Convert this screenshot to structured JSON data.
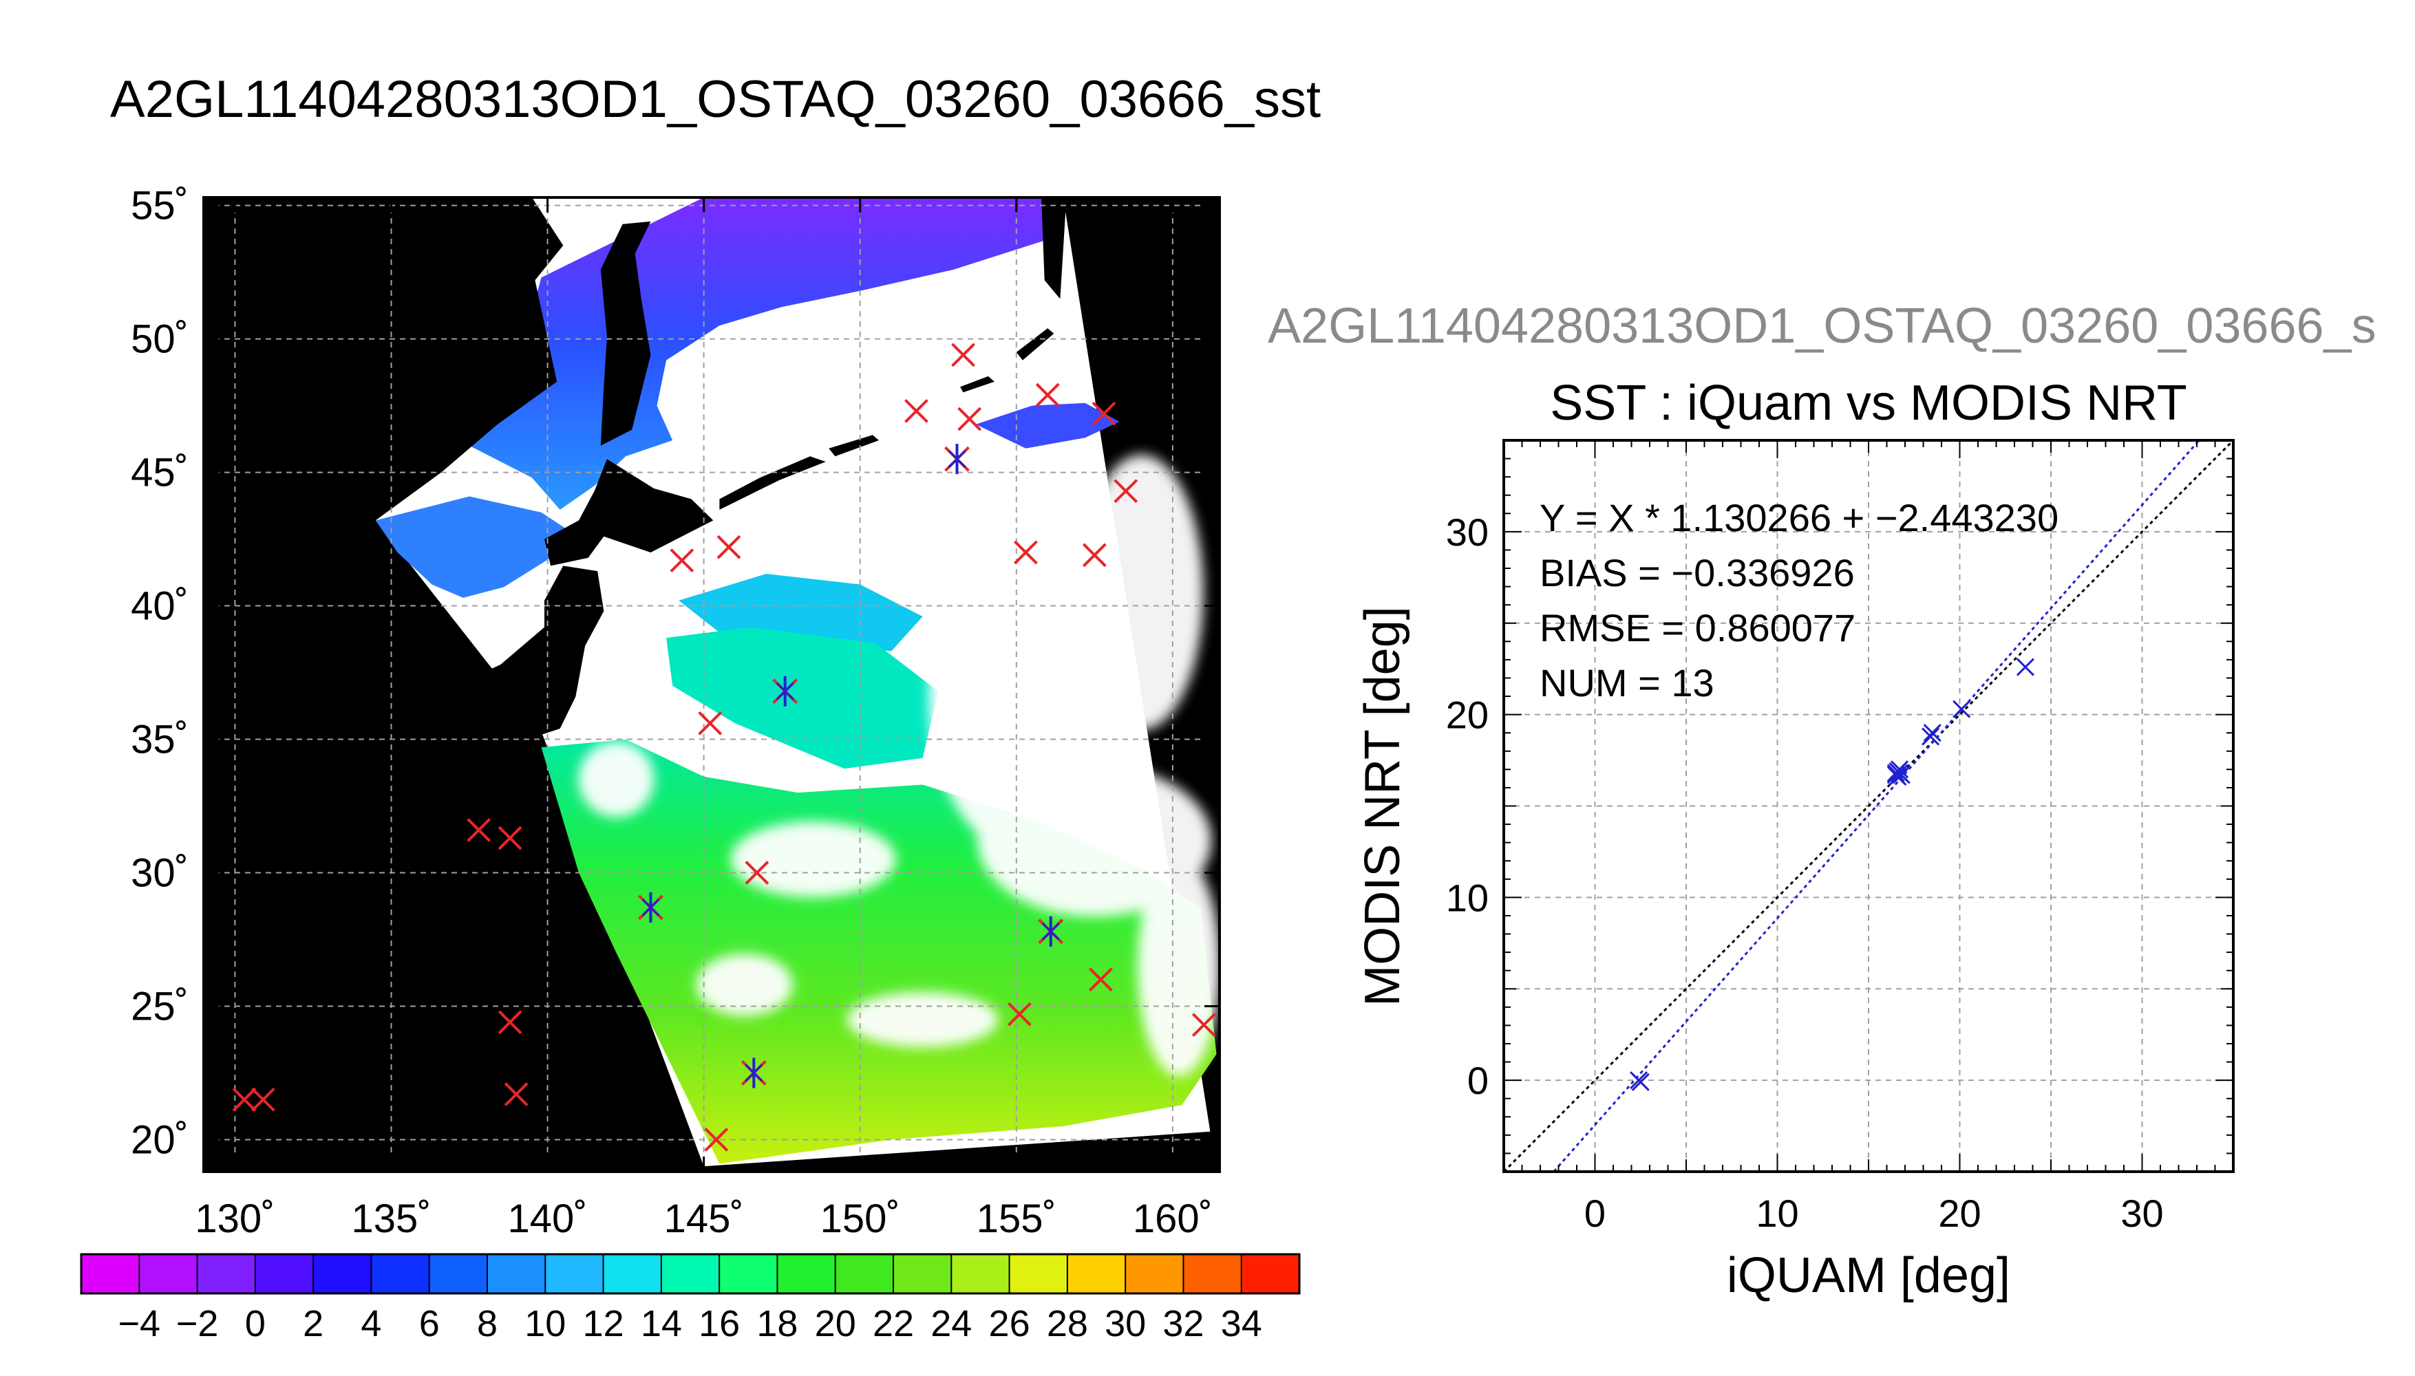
{
  "main_title": "A2GL11404280313OD1_OSTAQ_03260_03666_sst",
  "colors": {
    "background": "#ffffff",
    "land": "#000000",
    "cloud": "#ffffff",
    "grid": "#a0a0a0",
    "marker_red": "#e8252a",
    "marker_blue": "#2222cc",
    "fit_line": "#2020d0",
    "identity_line": "#000000",
    "scatter_title_gray": "#8a8a8a"
  },
  "map": {
    "lon_ticks": [
      "130˚",
      "135˚",
      "140˚",
      "145˚",
      "150˚",
      "155˚",
      "160˚"
    ],
    "lat_ticks": [
      "20˚",
      "25˚",
      "30˚",
      "35˚",
      "40˚",
      "45˚",
      "50˚",
      "55˚"
    ]
  },
  "colorbar": {
    "labels": [
      "−4",
      "−2",
      "0",
      "2",
      "4",
      "6",
      "8",
      "10",
      "12",
      "14",
      "16",
      "18",
      "20",
      "22",
      "24",
      "26",
      "28",
      "30",
      "32",
      "34"
    ],
    "colors": [
      "#dd00ff",
      "#b010ff",
      "#8020ff",
      "#5010ff",
      "#2010ff",
      "#1030ff",
      "#1060ff",
      "#1a90ff",
      "#20b8ff",
      "#10e0f0",
      "#00f8b0",
      "#10ff70",
      "#20f030",
      "#40e820",
      "#70e818",
      "#a8f018",
      "#e0f010",
      "#ffd000",
      "#ff9800",
      "#ff6000",
      "#ff2000"
    ]
  },
  "chart_data": [
    {
      "type": "heatmap",
      "title": "A2GL11404280313OD1_OSTAQ_03260_03666_sst",
      "xlabel": "",
      "ylabel": "",
      "xlim": [
        129,
        161.5
      ],
      "ylim": [
        18.8,
        55.3
      ],
      "x_ticks": [
        130,
        135,
        140,
        145,
        150,
        155,
        160
      ],
      "y_ticks": [
        20,
        25,
        30,
        35,
        40,
        45,
        50,
        55
      ],
      "grid": true,
      "colorbar_range": [
        -5,
        36
      ],
      "swath_corners": [
        [
          139,
          55.3
        ],
        [
          156.5,
          55.3
        ],
        [
          161.2,
          20.3
        ],
        [
          145,
          19
        ],
        [
          139.8,
          35.3
        ],
        [
          134.5,
          43.2
        ]
      ],
      "red_x_markers": [
        [
          130.3,
          21.5
        ],
        [
          130.9,
          21.5
        ],
        [
          137.8,
          31.6
        ],
        [
          138.8,
          31.3
        ],
        [
          138.8,
          24.4
        ],
        [
          139.0,
          21.7
        ],
        [
          144.3,
          41.7
        ],
        [
          145.8,
          42.2
        ],
        [
          145.2,
          35.6
        ],
        [
          146.7,
          30.0
        ],
        [
          145.4,
          20.0
        ],
        [
          151.8,
          47.3
        ],
        [
          153.3,
          49.4
        ],
        [
          153.5,
          47.0
        ],
        [
          155.3,
          42.0
        ],
        [
          156.0,
          47.9
        ],
        [
          157.5,
          41.9
        ],
        [
          157.8,
          47.2
        ],
        [
          158.5,
          44.3
        ],
        [
          157.7,
          26.0
        ],
        [
          155.1,
          24.7
        ],
        [
          161.0,
          24.3
        ]
      ],
      "asterisk_markers": [
        [
          147.6,
          36.8
        ],
        [
          143.3,
          28.7
        ],
        [
          146.6,
          22.5
        ],
        [
          156.1,
          27.8
        ],
        [
          153.1,
          45.5
        ]
      ]
    },
    {
      "type": "scatter",
      "title": "SST : iQuam vs MODIS NRT",
      "subtitle": "A2GL11404280313OD1_OSTAQ_03260_03666_s",
      "xlabel": "iQUAM [deg]",
      "ylabel": "MODIS NRT [deg]",
      "xlim": [
        -5,
        35
      ],
      "ylim": [
        -5,
        35
      ],
      "x_ticks": [
        0,
        10,
        20,
        30
      ],
      "y_ticks": [
        0,
        10,
        20,
        30
      ],
      "grid": true,
      "stats": [
        "Y = X * 1.130266 + −2.443230",
        "BIAS = −0.336926",
        "RMSE = 0.860077",
        "NUM = 13"
      ],
      "fit": {
        "slope": 1.130266,
        "intercept": -2.44323
      },
      "points": [
        [
          2.4,
          0.0
        ],
        [
          2.5,
          -0.1
        ],
        [
          16.5,
          16.8
        ],
        [
          16.7,
          17.0
        ],
        [
          16.6,
          16.6
        ],
        [
          16.8,
          16.7
        ],
        [
          16.6,
          16.9
        ],
        [
          18.5,
          19.0
        ],
        [
          18.4,
          18.8
        ],
        [
          20.1,
          20.3
        ],
        [
          23.6,
          22.6
        ],
        [
          16.7,
          16.8
        ],
        [
          16.5,
          16.7
        ]
      ]
    }
  ]
}
